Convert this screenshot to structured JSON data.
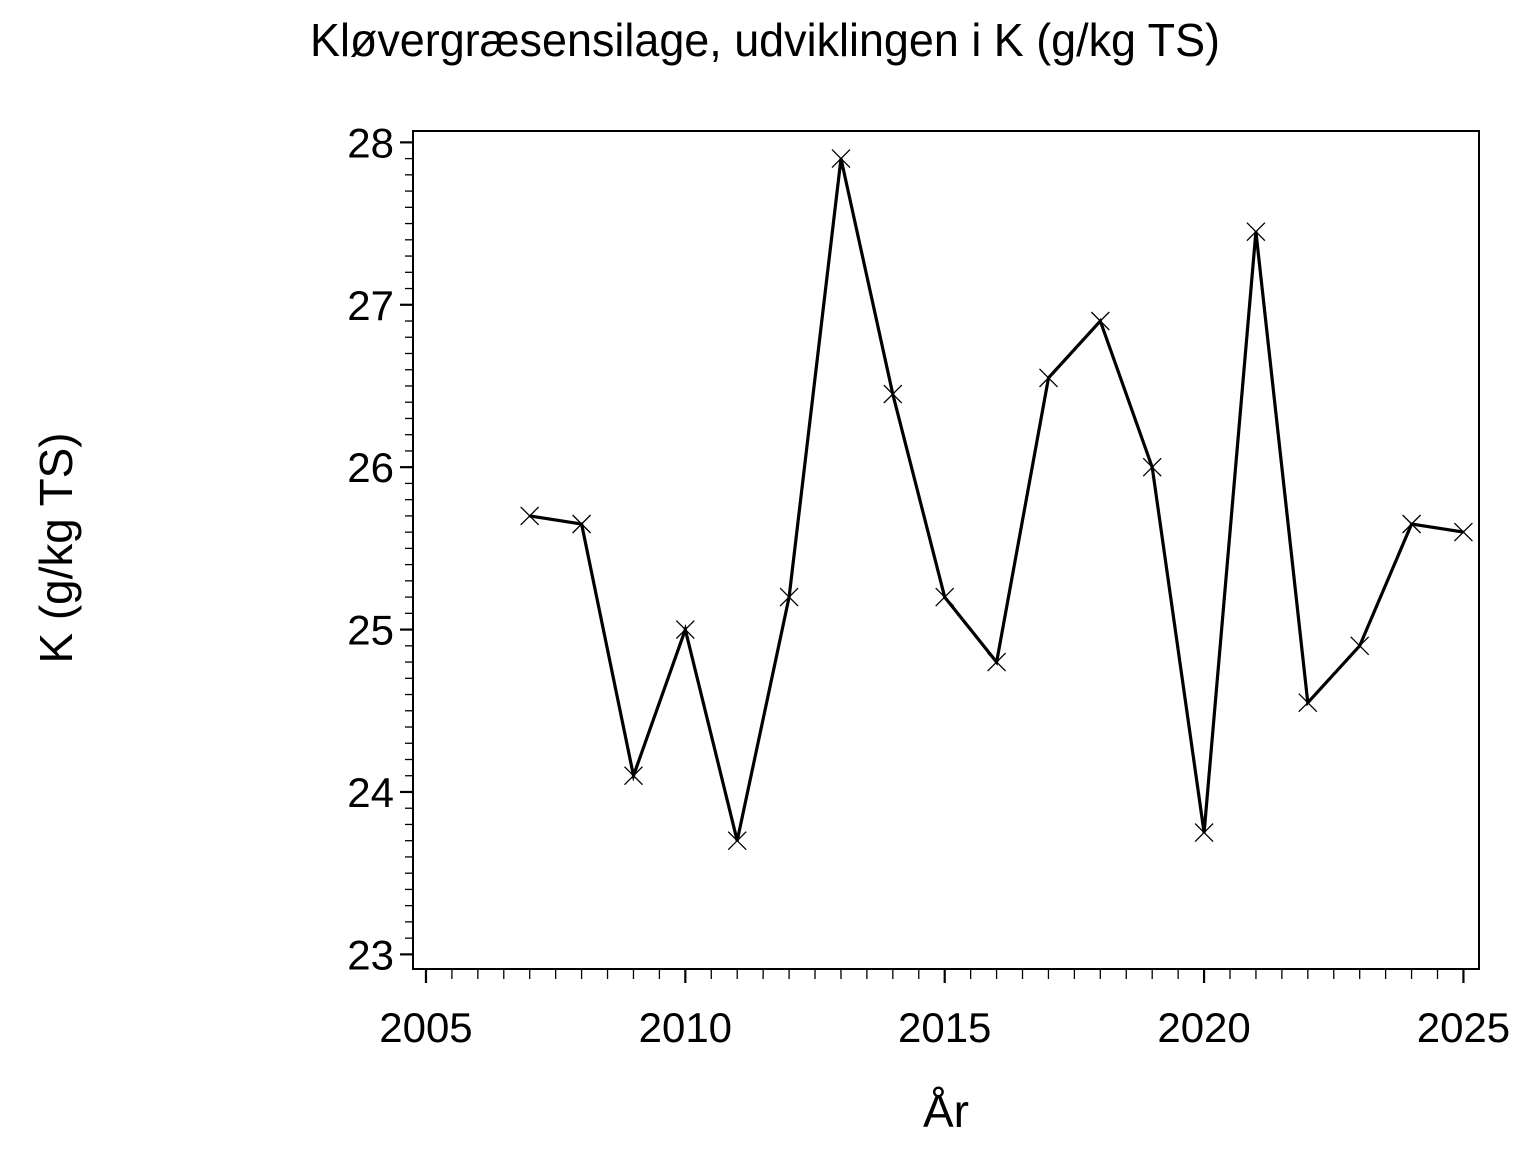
{
  "chart_data": {
    "type": "line",
    "title": "Kløvergræsensilage, udviklingen i K (g/kg TS)",
    "xlabel": "År",
    "ylabel": "K (g/kg TS)",
    "x": [
      2007,
      2008,
      2009,
      2010,
      2011,
      2012,
      2013,
      2014,
      2015,
      2016,
      2017,
      2018,
      2019,
      2020,
      2021,
      2022,
      2023,
      2024,
      2025
    ],
    "values": [
      25.7,
      25.65,
      24.1,
      25.0,
      23.7,
      25.2,
      27.9,
      26.45,
      25.2,
      24.8,
      26.55,
      26.9,
      26.0,
      23.75,
      27.45,
      24.55,
      24.9,
      25.65,
      25.6
    ],
    "xlim": [
      2004.75,
      2025.3
    ],
    "ylim": [
      22.91,
      28.07
    ],
    "xticks": [
      2005,
      2010,
      2015,
      2020,
      2025
    ],
    "yticks": [
      23,
      24,
      25,
      26,
      27,
      28
    ],
    "x_minor_step": 0.5,
    "y_minor_step": 0.1,
    "grid": false,
    "legend": "none",
    "marker": "x",
    "colors": {
      "line": "#000000",
      "marker": "#000000",
      "text": "#000000",
      "frame": "#000000",
      "background": "#ffffff"
    }
  }
}
